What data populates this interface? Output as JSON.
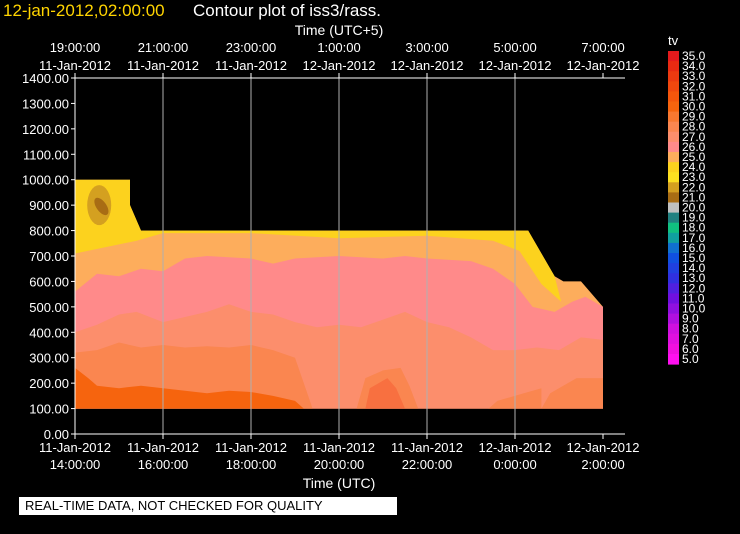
{
  "header": {
    "date_label": "12-jan-2012,02:00:00",
    "title": "Contour plot of iss3/rass."
  },
  "chart_data": {
    "type": "contour",
    "top_axis_label": "Time (UTC+5)",
    "bottom_axis_label": "Time (UTC)",
    "top_ticks": [
      {
        "time": "19:00:00",
        "date": "11-Jan-2012"
      },
      {
        "time": "21:00:00",
        "date": "11-Jan-2012"
      },
      {
        "time": "23:00:00",
        "date": "11-Jan-2012"
      },
      {
        "time": "1:00:00",
        "date": "12-Jan-2012"
      },
      {
        "time": "3:00:00",
        "date": "12-Jan-2012"
      },
      {
        "time": "5:00:00",
        "date": "12-Jan-2012"
      },
      {
        "time": "7:00:00",
        "date": "12-Jan-2012"
      }
    ],
    "bottom_ticks": [
      {
        "date": "11-Jan-2012",
        "time": "14:00:00"
      },
      {
        "date": "11-Jan-2012",
        "time": "16:00:00"
      },
      {
        "date": "11-Jan-2012",
        "time": "18:00:00"
      },
      {
        "date": "11-Jan-2012",
        "time": "20:00:00"
      },
      {
        "date": "11-Jan-2012",
        "time": "22:00:00"
      },
      {
        "date": "12-Jan-2012",
        "time": "0:00:00"
      },
      {
        "date": "12-Jan-2012",
        "time": "2:00:00"
      }
    ],
    "y_ticks": [
      "0.00",
      "100.00",
      "200.00",
      "300.00",
      "400.00",
      "500.00",
      "600.00",
      "700.00",
      "800.00",
      "900.00",
      "1000.00",
      "1100.00",
      "1200.00",
      "1300.00",
      "1400.00"
    ],
    "ylim": [
      0,
      1400
    ],
    "xlim_hours_utc": [
      14,
      26.5
    ],
    "grid": true,
    "legend": {
      "title": "tv",
      "placement": "right",
      "levels": [
        {
          "label": "35.0",
          "color": "#e41a1c"
        },
        {
          "label": "34.0",
          "color": "#e82a12"
        },
        {
          "label": "33.0",
          "color": "#ec3a10"
        },
        {
          "label": "32.0",
          "color": "#f0480e"
        },
        {
          "label": "31.0",
          "color": "#f4560c"
        },
        {
          "label": "30.0",
          "color": "#f6640e"
        },
        {
          "label": "29.0",
          "color": "#f87830"
        },
        {
          "label": "28.0",
          "color": "#fa8650"
        },
        {
          "label": "27.0",
          "color": "#fc8e6c"
        },
        {
          "label": "26.0",
          "color": "#ff8a8a"
        },
        {
          "label": "25.0",
          "color": "#fdad5c"
        },
        {
          "label": "24.0",
          "color": "#fcd21e"
        },
        {
          "label": "23.0",
          "color": "#fce020"
        },
        {
          "label": "22.0",
          "color": "#d4a020"
        },
        {
          "label": "21.0",
          "color": "#a86c14"
        },
        {
          "label": "20.0",
          "color": "#c0c0c0"
        },
        {
          "label": "19.0",
          "color": "#208080"
        },
        {
          "label": "18.0",
          "color": "#10c080"
        },
        {
          "label": "17.0",
          "color": "#10a0a0"
        },
        {
          "label": "16.0",
          "color": "#1070d0"
        },
        {
          "label": "15.0",
          "color": "#1050e0"
        },
        {
          "label": "14.0",
          "color": "#2040e0"
        },
        {
          "label": "13.0",
          "color": "#3030e0"
        },
        {
          "label": "12.0",
          "color": "#5020e0"
        },
        {
          "label": "11.0",
          "color": "#7010e0"
        },
        {
          "label": "10.0",
          "color": "#9010e0"
        },
        {
          "label": "9.0",
          "color": "#b010e0"
        },
        {
          "label": "8.0",
          "color": "#d010e0"
        },
        {
          "label": "7.0",
          "color": "#e010e0"
        },
        {
          "label": "6.0",
          "color": "#f010e0"
        },
        {
          "label": "5.0",
          "color": "#ff10f0"
        }
      ]
    },
    "contour_bands": [
      {
        "level": "30.0",
        "times_utc": [
          14.0,
          26.0
        ],
        "heights": [
          [
            100,
            260
          ],
          [
            100,
            210
          ]
        ]
      },
      {
        "level": "28.0",
        "heights_range": [
          200,
          420
        ]
      },
      {
        "level": "26.0",
        "heights_range": [
          350,
          620
        ]
      },
      {
        "level": "25.0",
        "heights_range": [
          550,
          800
        ]
      },
      {
        "level": "23.0",
        "heights_range": [
          700,
          1000
        ]
      },
      {
        "level": "21.0",
        "heights_range": [
          850,
          960
        ]
      }
    ],
    "data_top_heights": {
      "times_utc": [
        14.0,
        15.25,
        15.25,
        15.5,
        24.3,
        24.8,
        25.1,
        25.5,
        26.0
      ],
      "heights": [
        1000,
        1000,
        900,
        800,
        800,
        600,
        600,
        600,
        500
      ]
    }
  },
  "footer": {
    "quality_note": "REAL-TIME DATA, NOT CHECKED FOR QUALITY"
  }
}
